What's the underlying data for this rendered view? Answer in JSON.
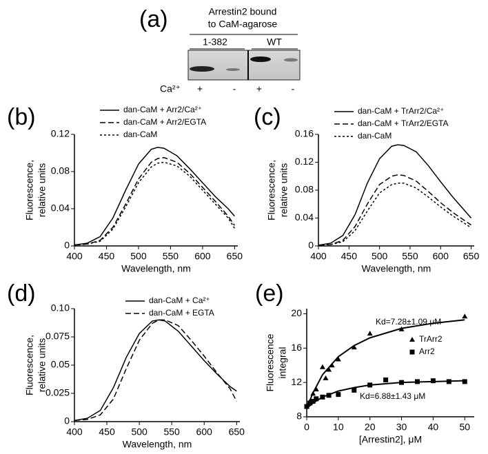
{
  "panel_a": {
    "label": "(a)",
    "title": [
      "Arrestin2 bound",
      "to CaM-agarose"
    ],
    "lanes": [
      "1-382",
      "WT"
    ],
    "row_label": "Ca²⁺",
    "conditions": [
      "+",
      "-",
      "+",
      "-"
    ]
  },
  "chart_data": [
    {
      "type": "line",
      "panel_label": "(b)",
      "xlabel": "Wavelength, nm",
      "ylabel": [
        "Fluorescence,",
        "relative units"
      ],
      "x": [
        400,
        420,
        440,
        460,
        480,
        500,
        520,
        530,
        540,
        560,
        580,
        600,
        620,
        640,
        650
      ],
      "series": [
        {
          "name": "dan-CaM + Arr2/Ca²⁺",
          "color": "#000000",
          "dash": "solid",
          "values": [
            0.001,
            0.003,
            0.01,
            0.03,
            0.06,
            0.088,
            0.104,
            0.106,
            0.105,
            0.097,
            0.083,
            0.068,
            0.053,
            0.04,
            0.032
          ]
        },
        {
          "name": "dan-CaM + Arr2/EGTA",
          "color": "#000000",
          "dash": "dashed",
          "values": [
            0.001,
            0.002,
            0.006,
            0.02,
            0.045,
            0.072,
            0.09,
            0.094,
            0.095,
            0.09,
            0.078,
            0.063,
            0.048,
            0.032,
            0.022
          ]
        },
        {
          "name": "dan-CaM",
          "color": "#000000",
          "dash": "dotted",
          "values": [
            0.001,
            0.002,
            0.005,
            0.018,
            0.042,
            0.068,
            0.085,
            0.089,
            0.09,
            0.086,
            0.075,
            0.06,
            0.045,
            0.03,
            0.019
          ]
        }
      ],
      "xlim": [
        400,
        655
      ],
      "xticks": [
        400,
        450,
        500,
        550,
        600,
        650
      ],
      "ylim": [
        0,
        0.12
      ],
      "yticks": [
        0,
        0.04,
        0.08,
        0.12
      ]
    },
    {
      "type": "line",
      "panel_label": "(c)",
      "xlabel": "Wavelength, nm",
      "ylabel": [
        "Fluorescence,",
        "relative units"
      ],
      "x": [
        400,
        420,
        440,
        460,
        480,
        500,
        520,
        530,
        540,
        560,
        580,
        600,
        620,
        640,
        650
      ],
      "series": [
        {
          "name": "dan-CaM + TrArr2/Ca²⁺",
          "color": "#000000",
          "dash": "solid",
          "values": [
            0.001,
            0.004,
            0.015,
            0.045,
            0.09,
            0.125,
            0.143,
            0.145,
            0.144,
            0.135,
            0.115,
            0.092,
            0.07,
            0.05,
            0.04
          ]
        },
        {
          "name": "dan-CaM + TrArr2/EGTA",
          "color": "#000000",
          "dash": "dashed",
          "values": [
            0.001,
            0.002,
            0.008,
            0.028,
            0.06,
            0.088,
            0.1,
            0.102,
            0.101,
            0.093,
            0.078,
            0.062,
            0.048,
            0.036,
            0.03
          ]
        },
        {
          "name": "dan-CaM",
          "color": "#000000",
          "dash": "dotted",
          "values": [
            0.001,
            0.002,
            0.006,
            0.022,
            0.05,
            0.076,
            0.088,
            0.09,
            0.09,
            0.083,
            0.07,
            0.056,
            0.043,
            0.032,
            0.026
          ]
        }
      ],
      "xlim": [
        400,
        655
      ],
      "xticks": [
        400,
        450,
        500,
        550,
        600,
        650
      ],
      "ylim": [
        0,
        0.16
      ],
      "yticks": [
        0,
        0.04,
        0.08,
        0.12,
        0.16
      ]
    },
    {
      "type": "line",
      "panel_label": "(d)",
      "xlabel": "Wavelength, nm",
      "ylabel": [
        "Fluorescence,",
        "relative units"
      ],
      "x": [
        400,
        420,
        440,
        460,
        480,
        500,
        520,
        530,
        540,
        560,
        580,
        600,
        620,
        640,
        650
      ],
      "series": [
        {
          "name": "dan-CaM + Ca²⁺",
          "color": "#000000",
          "dash": "solid",
          "values": [
            0.001,
            0.003,
            0.01,
            0.03,
            0.057,
            0.078,
            0.089,
            0.09,
            0.089,
            0.08,
            0.067,
            0.054,
            0.042,
            0.031,
            0.027
          ]
        },
        {
          "name": "dan-CaM + EGTA",
          "color": "#000000",
          "dash": "dashed",
          "values": [
            0.001,
            0.002,
            0.006,
            0.02,
            0.047,
            0.072,
            0.087,
            0.09,
            0.09,
            0.085,
            0.072,
            0.058,
            0.043,
            0.029,
            0.018
          ]
        }
      ],
      "xlim": [
        400,
        655
      ],
      "xticks": [
        400,
        450,
        500,
        550,
        600,
        650
      ],
      "ylim": [
        0,
        0.1
      ],
      "yticks": [
        0,
        0.025,
        0.05,
        0.075,
        {
          "value": 0.1,
          "label": "0.10"
        }
      ]
    },
    {
      "type": "scatter",
      "panel_label": "(e)",
      "xlabel": "[Arrestin2], μM",
      "ylabel": [
        "Fluorescence",
        "integral"
      ],
      "annotations": [
        "Kd=7.28±1.09 μM",
        "Kd=6.88±1.43 μM"
      ],
      "series": [
        {
          "name": "TrArr2",
          "color": "#000000",
          "marker": "triangle",
          "x": [
            0,
            1,
            2,
            3,
            5,
            6,
            7,
            8,
            10,
            15,
            20,
            30,
            50
          ],
          "values": [
            9.2,
            9.8,
            10.7,
            11.2,
            13.8,
            12.5,
            13.5,
            14.0,
            14.7,
            16.1,
            17.7,
            18.2,
            19.7
          ]
        },
        {
          "name": "Arr2",
          "color": "#000000",
          "marker": "square",
          "x": [
            0,
            1,
            2,
            3,
            5,
            7,
            10,
            15,
            20,
            25,
            30,
            35,
            40,
            45,
            50
          ],
          "values": [
            9.2,
            9.6,
            9.8,
            10.1,
            10.3,
            10.5,
            10.6,
            11.1,
            11.7,
            12.3,
            12.0,
            12.1,
            12.2,
            12.1,
            12.1
          ]
        },
        {
          "color": "#000000",
          "marker": "line",
          "x": [
            0,
            2,
            5,
            10,
            15,
            20,
            30,
            40,
            50
          ],
          "values": [
            9.0,
            10.8,
            12.9,
            15.0,
            16.3,
            17.2,
            18.3,
            18.9,
            19.3
          ]
        },
        {
          "color": "#000000",
          "marker": "line",
          "x": [
            0,
            2,
            5,
            10,
            15,
            20,
            30,
            40,
            50
          ],
          "values": [
            9.0,
            9.6,
            10.3,
            11.0,
            11.4,
            11.7,
            12.0,
            12.1,
            12.2
          ]
        }
      ],
      "xlim": [
        0,
        53
      ],
      "xticks": [
        0,
        10,
        20,
        30,
        40,
        50
      ],
      "ylim": [
        8,
        20.6
      ],
      "yticks": [
        8,
        12,
        16,
        20
      ]
    }
  ]
}
